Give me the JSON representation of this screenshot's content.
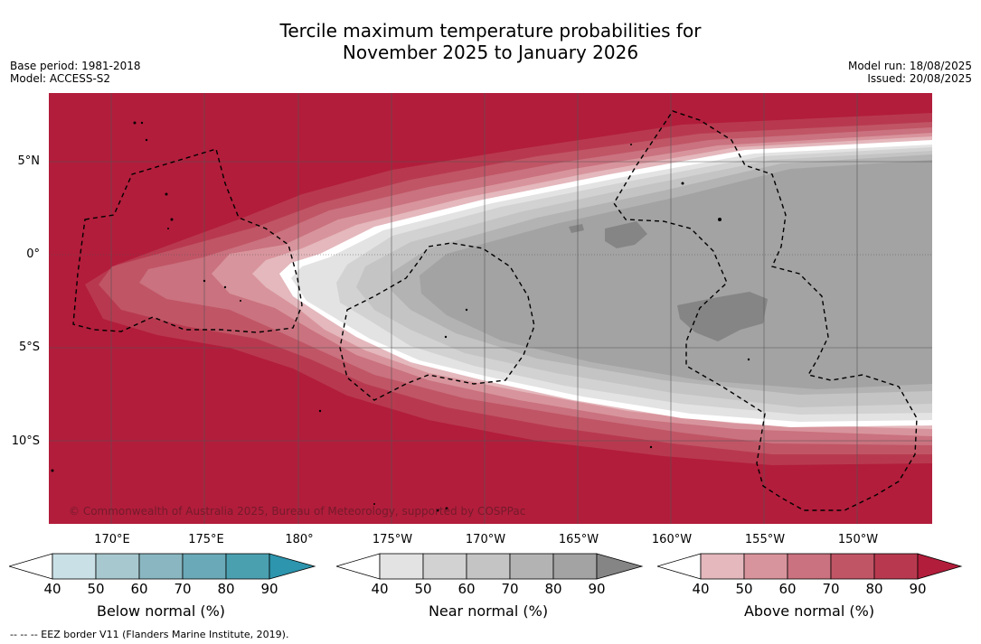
{
  "title": {
    "line1": "Tercile maximum temperature probabilities for",
    "line2": "November 2025 to January 2026"
  },
  "meta_left": {
    "base_period": "Base period: 1981-2018",
    "model": "Model: ACCESS-S2"
  },
  "meta_right": {
    "model_run": "Model run: 18/08/2025",
    "issued": "Issued: 20/08/2025"
  },
  "lat_labels": [
    "5°N",
    "0°",
    "5°S",
    "10°S"
  ],
  "lon_labels": [
    "170°E",
    "175°E",
    "180°",
    "175°W",
    "170°W",
    "165°W",
    "160°W",
    "155°W",
    "150°W"
  ],
  "credit": "© Commonwealth of Australia 2025, Bureau of Meteorology, supported by COSPPac",
  "colorbars": {
    "below": {
      "label": "Below normal (%)",
      "ticks": [
        "40",
        "50",
        "60",
        "70",
        "80",
        "90"
      ],
      "colors": [
        "#ffffff",
        "#c9e0e6",
        "#a7c8ce",
        "#89b6c0",
        "#6aa9b7",
        "#4ba0b0",
        "#2d95ad"
      ]
    },
    "near": {
      "label": "Near normal (%)",
      "ticks": [
        "40",
        "50",
        "60",
        "70",
        "80",
        "90"
      ],
      "colors": [
        "#ffffff",
        "#e3e3e3",
        "#d2d2d2",
        "#c4c4c4",
        "#b3b3b3",
        "#a3a3a3",
        "#858585"
      ]
    },
    "above": {
      "label": "Above normal (%)",
      "ticks": [
        "40",
        "50",
        "60",
        "70",
        "80",
        "90"
      ],
      "colors": [
        "#ffffff",
        "#e4b8bd",
        "#d8949c",
        "#ca727f",
        "#c05566",
        "#b8394f",
        "#b21d3b"
      ]
    }
  },
  "footnote": "-- -- -- EEZ border V11 (Flanders Marine Institute, 2019)."
}
